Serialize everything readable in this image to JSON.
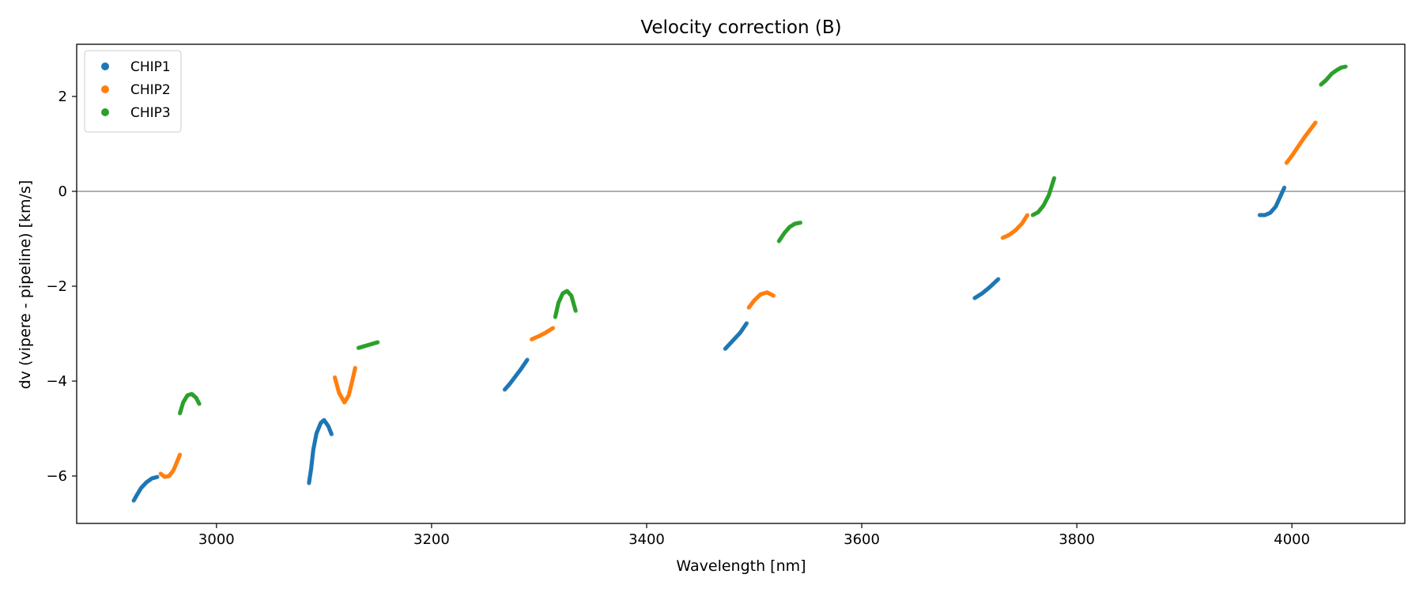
{
  "chart_data": {
    "type": "scatter",
    "title": "Velocity correction (B)",
    "xlabel": "Wavelength [nm]",
    "ylabel": "dv (vipere - pipeline) [km/s]",
    "xlim": [
      2870,
      4105
    ],
    "ylim": [
      -7.0,
      3.1
    ],
    "xticks": [
      3000,
      3200,
      3400,
      3600,
      3800,
      4000
    ],
    "yticks": [
      -6,
      -4,
      -2,
      0,
      2
    ],
    "reference_line_y": 0,
    "legend_position": "upper-left",
    "grid": false,
    "series": [
      {
        "name": "CHIP1",
        "color": "#1f77b4",
        "segments": [
          [
            [
              2923,
              -6.52
            ],
            [
              2926,
              -6.4
            ],
            [
              2930,
              -6.25
            ],
            [
              2935,
              -6.13
            ],
            [
              2940,
              -6.05
            ],
            [
              2945,
              -6.02
            ]
          ],
          [
            [
              3086,
              -6.15
            ],
            [
              3088,
              -5.85
            ],
            [
              3090,
              -5.45
            ],
            [
              3093,
              -5.1
            ],
            [
              3097,
              -4.88
            ],
            [
              3100,
              -4.82
            ],
            [
              3104,
              -4.95
            ],
            [
              3107,
              -5.12
            ]
          ],
          [
            [
              3268,
              -4.18
            ],
            [
              3273,
              -4.05
            ],
            [
              3278,
              -3.9
            ],
            [
              3283,
              -3.75
            ],
            [
              3289,
              -3.55
            ]
          ],
          [
            [
              3473,
              -3.32
            ],
            [
              3480,
              -3.15
            ],
            [
              3487,
              -2.98
            ],
            [
              3493,
              -2.78
            ]
          ],
          [
            [
              3705,
              -2.25
            ],
            [
              3712,
              -2.15
            ],
            [
              3719,
              -2.02
            ],
            [
              3727,
              -1.85
            ]
          ],
          [
            [
              3970,
              -0.5
            ],
            [
              3975,
              -0.5
            ],
            [
              3980,
              -0.45
            ],
            [
              3985,
              -0.32
            ],
            [
              3989,
              -0.12
            ],
            [
              3993,
              0.08
            ]
          ]
        ]
      },
      {
        "name": "CHIP2",
        "color": "#ff7f0e",
        "segments": [
          [
            [
              2948,
              -5.95
            ],
            [
              2952,
              -6.02
            ],
            [
              2956,
              -6.0
            ],
            [
              2960,
              -5.88
            ],
            [
              2963,
              -5.72
            ],
            [
              2966,
              -5.55
            ]
          ],
          [
            [
              3110,
              -3.92
            ],
            [
              3114,
              -4.25
            ],
            [
              3119,
              -4.45
            ],
            [
              3123,
              -4.3
            ],
            [
              3126,
              -4.02
            ],
            [
              3129,
              -3.72
            ]
          ],
          [
            [
              3293,
              -3.12
            ],
            [
              3300,
              -3.05
            ],
            [
              3306,
              -2.98
            ],
            [
              3313,
              -2.88
            ]
          ],
          [
            [
              3495,
              -2.45
            ],
            [
              3500,
              -2.3
            ],
            [
              3506,
              -2.17
            ],
            [
              3512,
              -2.13
            ],
            [
              3518,
              -2.2
            ]
          ],
          [
            [
              3731,
              -0.98
            ],
            [
              3737,
              -0.92
            ],
            [
              3743,
              -0.82
            ],
            [
              3749,
              -0.68
            ],
            [
              3754,
              -0.5
            ]
          ],
          [
            [
              3995,
              0.6
            ],
            [
              4000,
              0.75
            ],
            [
              4006,
              0.95
            ],
            [
              4012,
              1.15
            ],
            [
              4017,
              1.3
            ],
            [
              4022,
              1.45
            ]
          ]
        ]
      },
      {
        "name": "CHIP3",
        "color": "#2ca02c",
        "segments": [
          [
            [
              2966,
              -4.68
            ],
            [
              2969,
              -4.45
            ],
            [
              2973,
              -4.3
            ],
            [
              2977,
              -4.27
            ],
            [
              2981,
              -4.35
            ],
            [
              2984,
              -4.48
            ]
          ],
          [
            [
              3132,
              -3.3
            ],
            [
              3138,
              -3.26
            ],
            [
              3144,
              -3.22
            ],
            [
              3150,
              -3.18
            ]
          ],
          [
            [
              3315,
              -2.65
            ],
            [
              3318,
              -2.35
            ],
            [
              3322,
              -2.15
            ],
            [
              3326,
              -2.1
            ],
            [
              3330,
              -2.2
            ],
            [
              3334,
              -2.52
            ]
          ],
          [
            [
              3523,
              -1.05
            ],
            [
              3528,
              -0.88
            ],
            [
              3533,
              -0.75
            ],
            [
              3538,
              -0.68
            ],
            [
              3543,
              -0.66
            ]
          ],
          [
            [
              3759,
              -0.5
            ],
            [
              3764,
              -0.44
            ],
            [
              3769,
              -0.3
            ],
            [
              3774,
              -0.08
            ],
            [
              3779,
              0.28
            ]
          ],
          [
            [
              4027,
              2.25
            ],
            [
              4032,
              2.35
            ],
            [
              4037,
              2.48
            ],
            [
              4042,
              2.56
            ],
            [
              4046,
              2.61
            ],
            [
              4050,
              2.63
            ]
          ]
        ]
      }
    ]
  }
}
